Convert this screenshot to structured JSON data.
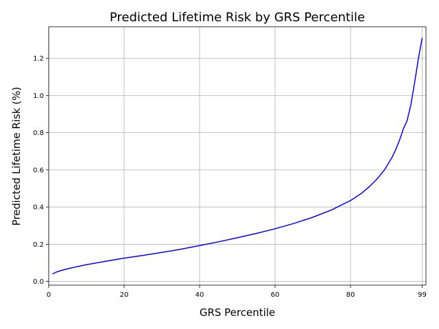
{
  "chart_data": {
    "type": "line",
    "title": "Predicted Lifetime Risk by GRS Percentile",
    "xlabel": "GRS Percentile",
    "ylabel": "Predicted Lifetime Risk (%)",
    "xlim": [
      0,
      100
    ],
    "ylim": [
      -0.02,
      1.37
    ],
    "xticks": [
      0,
      20,
      40,
      60,
      80,
      99
    ],
    "xtick_labels": [
      "0",
      "20",
      "40",
      "60",
      "80",
      "99"
    ],
    "yticks": [
      0.0,
      0.2,
      0.4,
      0.6,
      0.8,
      1.0,
      1.2
    ],
    "ytick_labels": [
      "0.0",
      "0.2",
      "0.4",
      "0.6",
      "0.8",
      "1.0",
      "1.2"
    ],
    "grid": true,
    "series": [
      {
        "color": "#0000ff",
        "x": [
          1,
          2,
          3,
          5,
          7,
          10,
          15,
          20,
          25,
          30,
          35,
          40,
          45,
          50,
          55,
          60,
          65,
          70,
          75,
          80,
          83,
          85,
          87,
          89,
          90,
          91,
          92,
          93,
          94,
          95,
          96,
          97,
          98,
          99
        ],
        "y": [
          0.04,
          0.05,
          0.057,
          0.068,
          0.077,
          0.09,
          0.108,
          0.125,
          0.14,
          0.156,
          0.173,
          0.193,
          0.213,
          0.235,
          0.258,
          0.283,
          0.312,
          0.345,
          0.385,
          0.435,
          0.475,
          0.51,
          0.55,
          0.6,
          0.633,
          0.667,
          0.71,
          0.76,
          0.82,
          0.865,
          0.95,
          1.07,
          1.2,
          1.31
        ]
      }
    ]
  }
}
